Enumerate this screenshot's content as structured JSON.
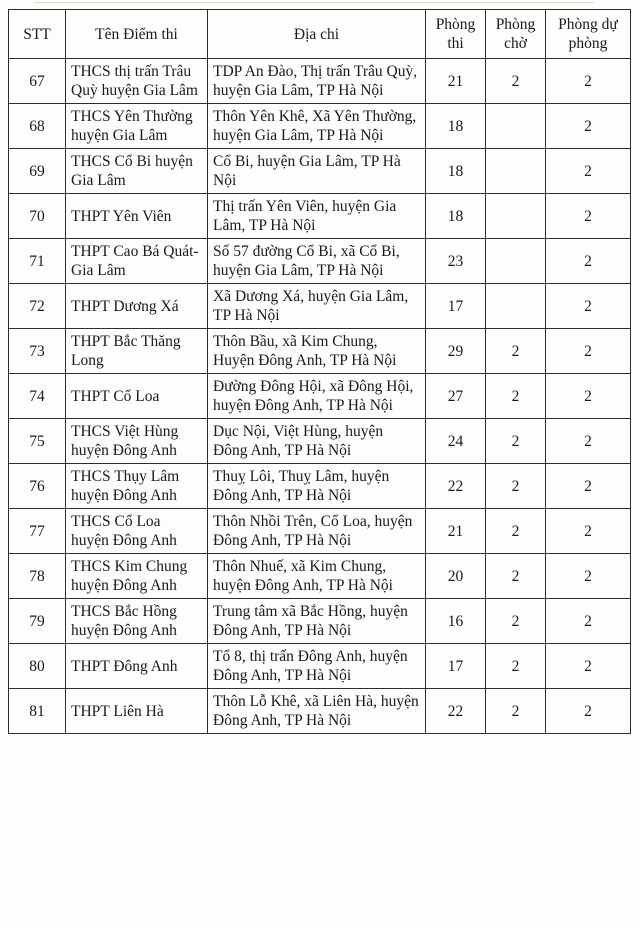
{
  "page": {
    "ink_color": "#1a1a1a",
    "border_color": "#2e2d2b",
    "background_color": "#fdfdfb"
  },
  "table": {
    "headers": [
      "STT",
      "Tên Điểm thi",
      "Địa chi",
      "Phòng thi",
      "Phòng chờ",
      "Phòng dự phòng"
    ],
    "rows": [
      {
        "stt": "67",
        "name": "THCS thị trấn Trâu Quỳ huyện Gia Lâm",
        "address": "TDP An Đào, Thị trấn Trâu Quỳ, huyện Gia Lâm, TP Hà Nội",
        "phong_thi": "21",
        "phong_cho": "2",
        "phong_du_phong": "2"
      },
      {
        "stt": "68",
        "name": "THCS Yên Thường huyện Gia Lâm",
        "address": "Thôn Yên Khê, Xã Yên Thường, huyện Gia Lâm, TP Hà Nội",
        "phong_thi": "18",
        "phong_cho": "",
        "phong_du_phong": "2"
      },
      {
        "stt": "69",
        "name": "THCS Cổ Bi huyện Gia Lâm",
        "address": "Cổ Bi, huyện Gia Lâm, TP Hà Nội",
        "phong_thi": "18",
        "phong_cho": "",
        "phong_du_phong": "2"
      },
      {
        "stt": "70",
        "name": "THPT Yên Viên",
        "address": "Thị trấn Yên Viên, huyện Gia Lâm, TP Hà Nội",
        "phong_thi": "18",
        "phong_cho": "",
        "phong_du_phong": "2"
      },
      {
        "stt": "71",
        "name": "THPT Cao Bá Quát-Gia Lâm",
        "address": "Số 57 đường Cổ Bi, xã Cổ Bi, huyện Gia Lâm, TP Hà Nội",
        "phong_thi": "23",
        "phong_cho": "",
        "phong_du_phong": "2"
      },
      {
        "stt": "72",
        "name": "THPT Dương Xá",
        "address": "Xã Dương Xá, huyện Gia Lâm, TP Hà Nội",
        "phong_thi": "17",
        "phong_cho": "",
        "phong_du_phong": "2"
      },
      {
        "stt": "73",
        "name": "THPT Bắc Thăng Long",
        "address": "Thôn Bầu, xã Kim Chung, Huyện Đông Anh, TP Hà Nội",
        "phong_thi": "29",
        "phong_cho": "2",
        "phong_du_phong": "2"
      },
      {
        "stt": "74",
        "name": "THPT Cổ Loa",
        "address": "Đường Đông Hội, xã Đông Hội, huyện Đông Anh, TP Hà Nội",
        "phong_thi": "27",
        "phong_cho": "2",
        "phong_du_phong": "2"
      },
      {
        "stt": "75",
        "name": "THCS Việt Hùng huyện Đông Anh",
        "address": "Dục Nội, Việt Hùng, huyện Đông Anh, TP Hà Nội",
        "phong_thi": "24",
        "phong_cho": "2",
        "phong_du_phong": "2"
      },
      {
        "stt": "76",
        "name": "THCS Thụy Lâm huyện Đông Anh",
        "address": "Thuỵ Lôi, Thuỵ Lâm, huyện Đông Anh, TP Hà Nội",
        "phong_thi": "22",
        "phong_cho": "2",
        "phong_du_phong": "2"
      },
      {
        "stt": "77",
        "name": "THCS Cổ Loa huyện Đông Anh",
        "address": "Thôn Nhồi Trên, Cổ Loa, huyện Đông Anh, TP Hà Nội",
        "phong_thi": "21",
        "phong_cho": "2",
        "phong_du_phong": "2"
      },
      {
        "stt": "78",
        "name": "THCS Kim Chung huyện Đông Anh",
        "address": "Thôn Nhuế, xã Kim Chung, huyện Đông Anh, TP Hà Nội",
        "phong_thi": "20",
        "phong_cho": "2",
        "phong_du_phong": "2"
      },
      {
        "stt": "79",
        "name": "THCS Bắc Hồng huyện Đông Anh",
        "address": "Trung tâm xã Bắc Hồng, huyện Đông Anh, TP Hà Nội",
        "phong_thi": "16",
        "phong_cho": "2",
        "phong_du_phong": "2"
      },
      {
        "stt": "80",
        "name": "THPT Đông Anh",
        "address": "Tổ 8, thị trấn Đông Anh, huyện Đông Anh, TP Hà Nội",
        "phong_thi": "17",
        "phong_cho": "2",
        "phong_du_phong": "2"
      },
      {
        "stt": "81",
        "name": "THPT Liên Hà",
        "address": "Thôn Lỗ Khê, xã Liên Hà, huyện Đông Anh, TP Hà Nội",
        "phong_thi": "22",
        "phong_cho": "2",
        "phong_du_phong": "2"
      }
    ]
  }
}
